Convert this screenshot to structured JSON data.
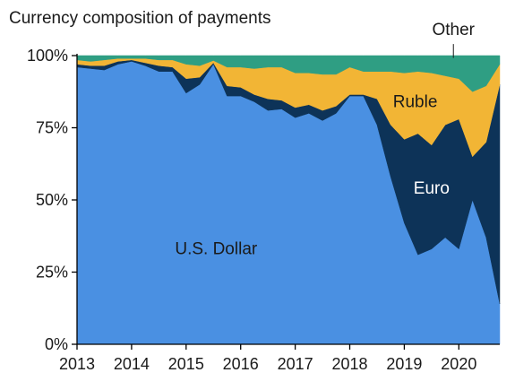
{
  "chart_data": {
    "type": "area",
    "stacked": true,
    "title": "Currency composition of payments",
    "xlabel": "",
    "ylabel": "",
    "xlim": [
      2013,
      2020.75
    ],
    "ylim": [
      0,
      100
    ],
    "x_ticks": [
      2013,
      2014,
      2015,
      2016,
      2017,
      2018,
      2019,
      2020
    ],
    "y_ticks": [
      {
        "value": 0,
        "label": "0%"
      },
      {
        "value": 25,
        "label": "25%"
      },
      {
        "value": 50,
        "label": "50%"
      },
      {
        "value": 75,
        "label": "75%"
      },
      {
        "value": 100,
        "label": "100%"
      }
    ],
    "grid": false,
    "x": [
      2013.0,
      2013.25,
      2013.5,
      2013.75,
      2014.0,
      2014.25,
      2014.5,
      2014.75,
      2015.0,
      2015.25,
      2015.5,
      2015.75,
      2016.0,
      2016.25,
      2016.5,
      2016.75,
      2017.0,
      2017.25,
      2017.5,
      2017.75,
      2018.0,
      2018.25,
      2018.5,
      2018.75,
      2019.0,
      2019.25,
      2019.5,
      2019.75,
      2020.0,
      2020.25,
      2020.5,
      2020.75
    ],
    "series": [
      {
        "name": "U.S. Dollar",
        "color": "#4a90e2",
        "values": [
          96,
          95.5,
          95,
          97,
          98,
          96.5,
          94.5,
          94.5,
          87,
          90,
          97,
          86,
          86,
          84,
          81,
          81.5,
          78.5,
          80,
          77.5,
          80,
          86,
          86,
          76,
          58,
          42,
          31,
          33,
          37,
          33,
          50,
          37,
          14
        ]
      },
      {
        "name": "Euro",
        "color": "#0d3358",
        "values": [
          1,
          1,
          1.5,
          1,
          0.5,
          1,
          2,
          1.5,
          5,
          2.5,
          0.5,
          3.5,
          3,
          2.5,
          4,
          3,
          3.5,
          3,
          3.5,
          2.5,
          0.5,
          0.5,
          9,
          18,
          29,
          42,
          36,
          39,
          45,
          15,
          33,
          76
        ]
      },
      {
        "name": "Ruble",
        "color": "#f2b535",
        "values": [
          1.5,
          1.5,
          2,
          1,
          0.5,
          1.5,
          2,
          2.5,
          5,
          4,
          0.8,
          6.5,
          7,
          9,
          11,
          11.5,
          12,
          11,
          12.5,
          11,
          9.5,
          8,
          9.5,
          18.5,
          23,
          21.5,
          25,
          17,
          14,
          22.5,
          19.5,
          7
        ]
      },
      {
        "name": "Other",
        "color": "#2f9e83",
        "values": [
          1.5,
          2,
          1.5,
          1,
          1,
          1,
          1.5,
          1.5,
          3,
          3.5,
          1.7,
          4,
          4,
          4.5,
          4,
          4,
          6,
          6,
          6.5,
          6.5,
          4,
          5.5,
          5.5,
          5.5,
          6,
          5.5,
          6,
          7,
          8,
          12.5,
          10.5,
          3
        ]
      }
    ],
    "annotations": [
      {
        "text": "U.S. Dollar",
        "series": "U.S. Dollar"
      },
      {
        "text": "Euro",
        "series": "Euro"
      },
      {
        "text": "Ruble",
        "series": "Ruble"
      },
      {
        "text": "Other",
        "series": "Other",
        "leader_line": true
      }
    ]
  }
}
